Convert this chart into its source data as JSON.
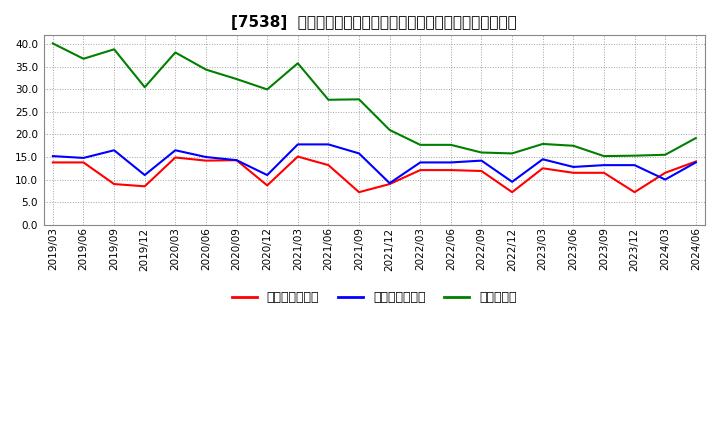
{
  "title": "[7538]  売上債権回転率、買入債務回転率、在庫回転率の推移",
  "dates": [
    "2019/03",
    "2019/06",
    "2019/09",
    "2019/12",
    "2020/03",
    "2020/06",
    "2020/09",
    "2020/12",
    "2021/03",
    "2021/06",
    "2021/09",
    "2021/12",
    "2022/03",
    "2022/06",
    "2022/09",
    "2022/12",
    "2023/03",
    "2023/06",
    "2023/09",
    "2023/12",
    "2024/03",
    "2024/06"
  ],
  "receivables_turnover": [
    13.8,
    13.8,
    9.0,
    8.5,
    14.9,
    14.2,
    14.3,
    8.7,
    15.1,
    13.2,
    7.2,
    9.0,
    12.1,
    12.1,
    11.9,
    7.2,
    12.5,
    11.5,
    11.5,
    7.2,
    11.5,
    14.0
  ],
  "payables_turnover": [
    15.2,
    14.8,
    16.5,
    11.0,
    16.5,
    15.0,
    14.3,
    11.0,
    17.8,
    17.8,
    15.8,
    9.2,
    13.8,
    13.8,
    14.2,
    9.5,
    14.5,
    12.8,
    13.2,
    13.2,
    10.0,
    13.8
  ],
  "inventory_turnover": [
    40.2,
    36.8,
    38.9,
    30.5,
    38.2,
    34.4,
    32.3,
    30.0,
    35.8,
    27.7,
    27.8,
    21.0,
    17.7,
    17.7,
    16.0,
    15.8,
    17.9,
    17.5,
    15.2,
    15.3,
    15.5,
    19.2
  ],
  "receivables_color": "#ff0000",
  "payables_color": "#0000ff",
  "inventory_color": "#008000",
  "ylim": [
    0,
    42
  ],
  "yticks": [
    0.0,
    5.0,
    10.0,
    15.0,
    20.0,
    25.0,
    30.0,
    35.0,
    40.0
  ],
  "legend_labels": [
    "売上債権回転率",
    "買入債務回転率",
    "在庫回転率"
  ],
  "background_color": "#ffffff",
  "grid_color": "#999999",
  "title_fontsize": 11,
  "tick_fontsize": 7.5,
  "legend_fontsize": 9
}
